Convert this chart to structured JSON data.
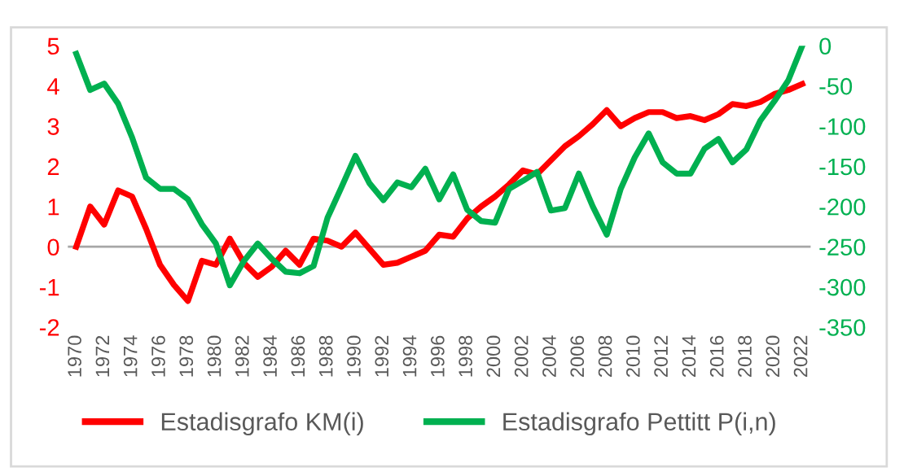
{
  "chart_data": {
    "type": "line",
    "categories": [
      "1970",
      null,
      "1972",
      null,
      "1974",
      null,
      "1976",
      null,
      "1978",
      null,
      "1980",
      null,
      "1982",
      null,
      "1984",
      null,
      "1986",
      null,
      "1988",
      null,
      "1990",
      null,
      "1992",
      null,
      "1994",
      null,
      "1996",
      null,
      "1998",
      null,
      "2000",
      null,
      "2002",
      null,
      "2004",
      null,
      "2006",
      null,
      "2008",
      null,
      "2010",
      null,
      "2012",
      null,
      "2014",
      null,
      "2016",
      null,
      "2018",
      null,
      "2020",
      null,
      "2022"
    ],
    "series": [
      {
        "name": "Estadisgrafo KM(i)",
        "color": "#ff0000",
        "axis": "y",
        "values": [
          0,
          1.0,
          0.55,
          1.4,
          1.25,
          0.45,
          -0.45,
          -0.95,
          -1.35,
          -0.35,
          -0.45,
          0.2,
          -0.4,
          -0.75,
          -0.5,
          -0.1,
          -0.45,
          0.2,
          0.15,
          0.0,
          0.35,
          -0.05,
          -0.45,
          -0.4,
          -0.25,
          -0.1,
          0.3,
          0.25,
          0.7,
          1.0,
          1.25,
          1.55,
          1.9,
          1.8,
          2.15,
          2.5,
          2.75,
          3.05,
          3.4,
          3.0,
          3.2,
          3.35,
          3.35,
          3.2,
          3.25,
          3.15,
          3.3,
          3.55,
          3.5,
          3.6,
          3.8,
          3.9,
          4.05
        ]
      },
      {
        "name": "Estadisgrafo Pettitt P(i,n)",
        "color": "#00b050",
        "axis": "y2",
        "values": [
          -10,
          -55,
          -47,
          -72,
          -114,
          -164,
          -178,
          -178,
          -191,
          -222,
          -246,
          -298,
          -268,
          -246,
          -265,
          -281,
          -283,
          -274,
          -214,
          -176,
          -137,
          -171,
          -192,
          -170,
          -176,
          -153,
          -191,
          -160,
          -204,
          -218,
          -220,
          -178,
          -168,
          -157,
          -205,
          -202,
          -159,
          -200,
          -235,
          -178,
          -139,
          -109,
          -145,
          -159,
          -159,
          -128,
          -116,
          -145,
          -129,
          -93,
          -69,
          -43,
          0
        ]
      }
    ],
    "ylim": [
      -2,
      5
    ],
    "yticks": [
      -2,
      -1,
      0,
      1,
      2,
      3,
      4,
      5
    ],
    "y2lim": [
      -350,
      0
    ],
    "y2ticks": [
      -350,
      -300,
      -250,
      -200,
      -150,
      -100,
      -50,
      0
    ],
    "ref_lines": [
      {
        "axis": "y",
        "value": 0,
        "color": "#a6a6a6"
      }
    ],
    "grid": false,
    "legend": "bottom",
    "marker": "none",
    "line_style": "solid"
  }
}
